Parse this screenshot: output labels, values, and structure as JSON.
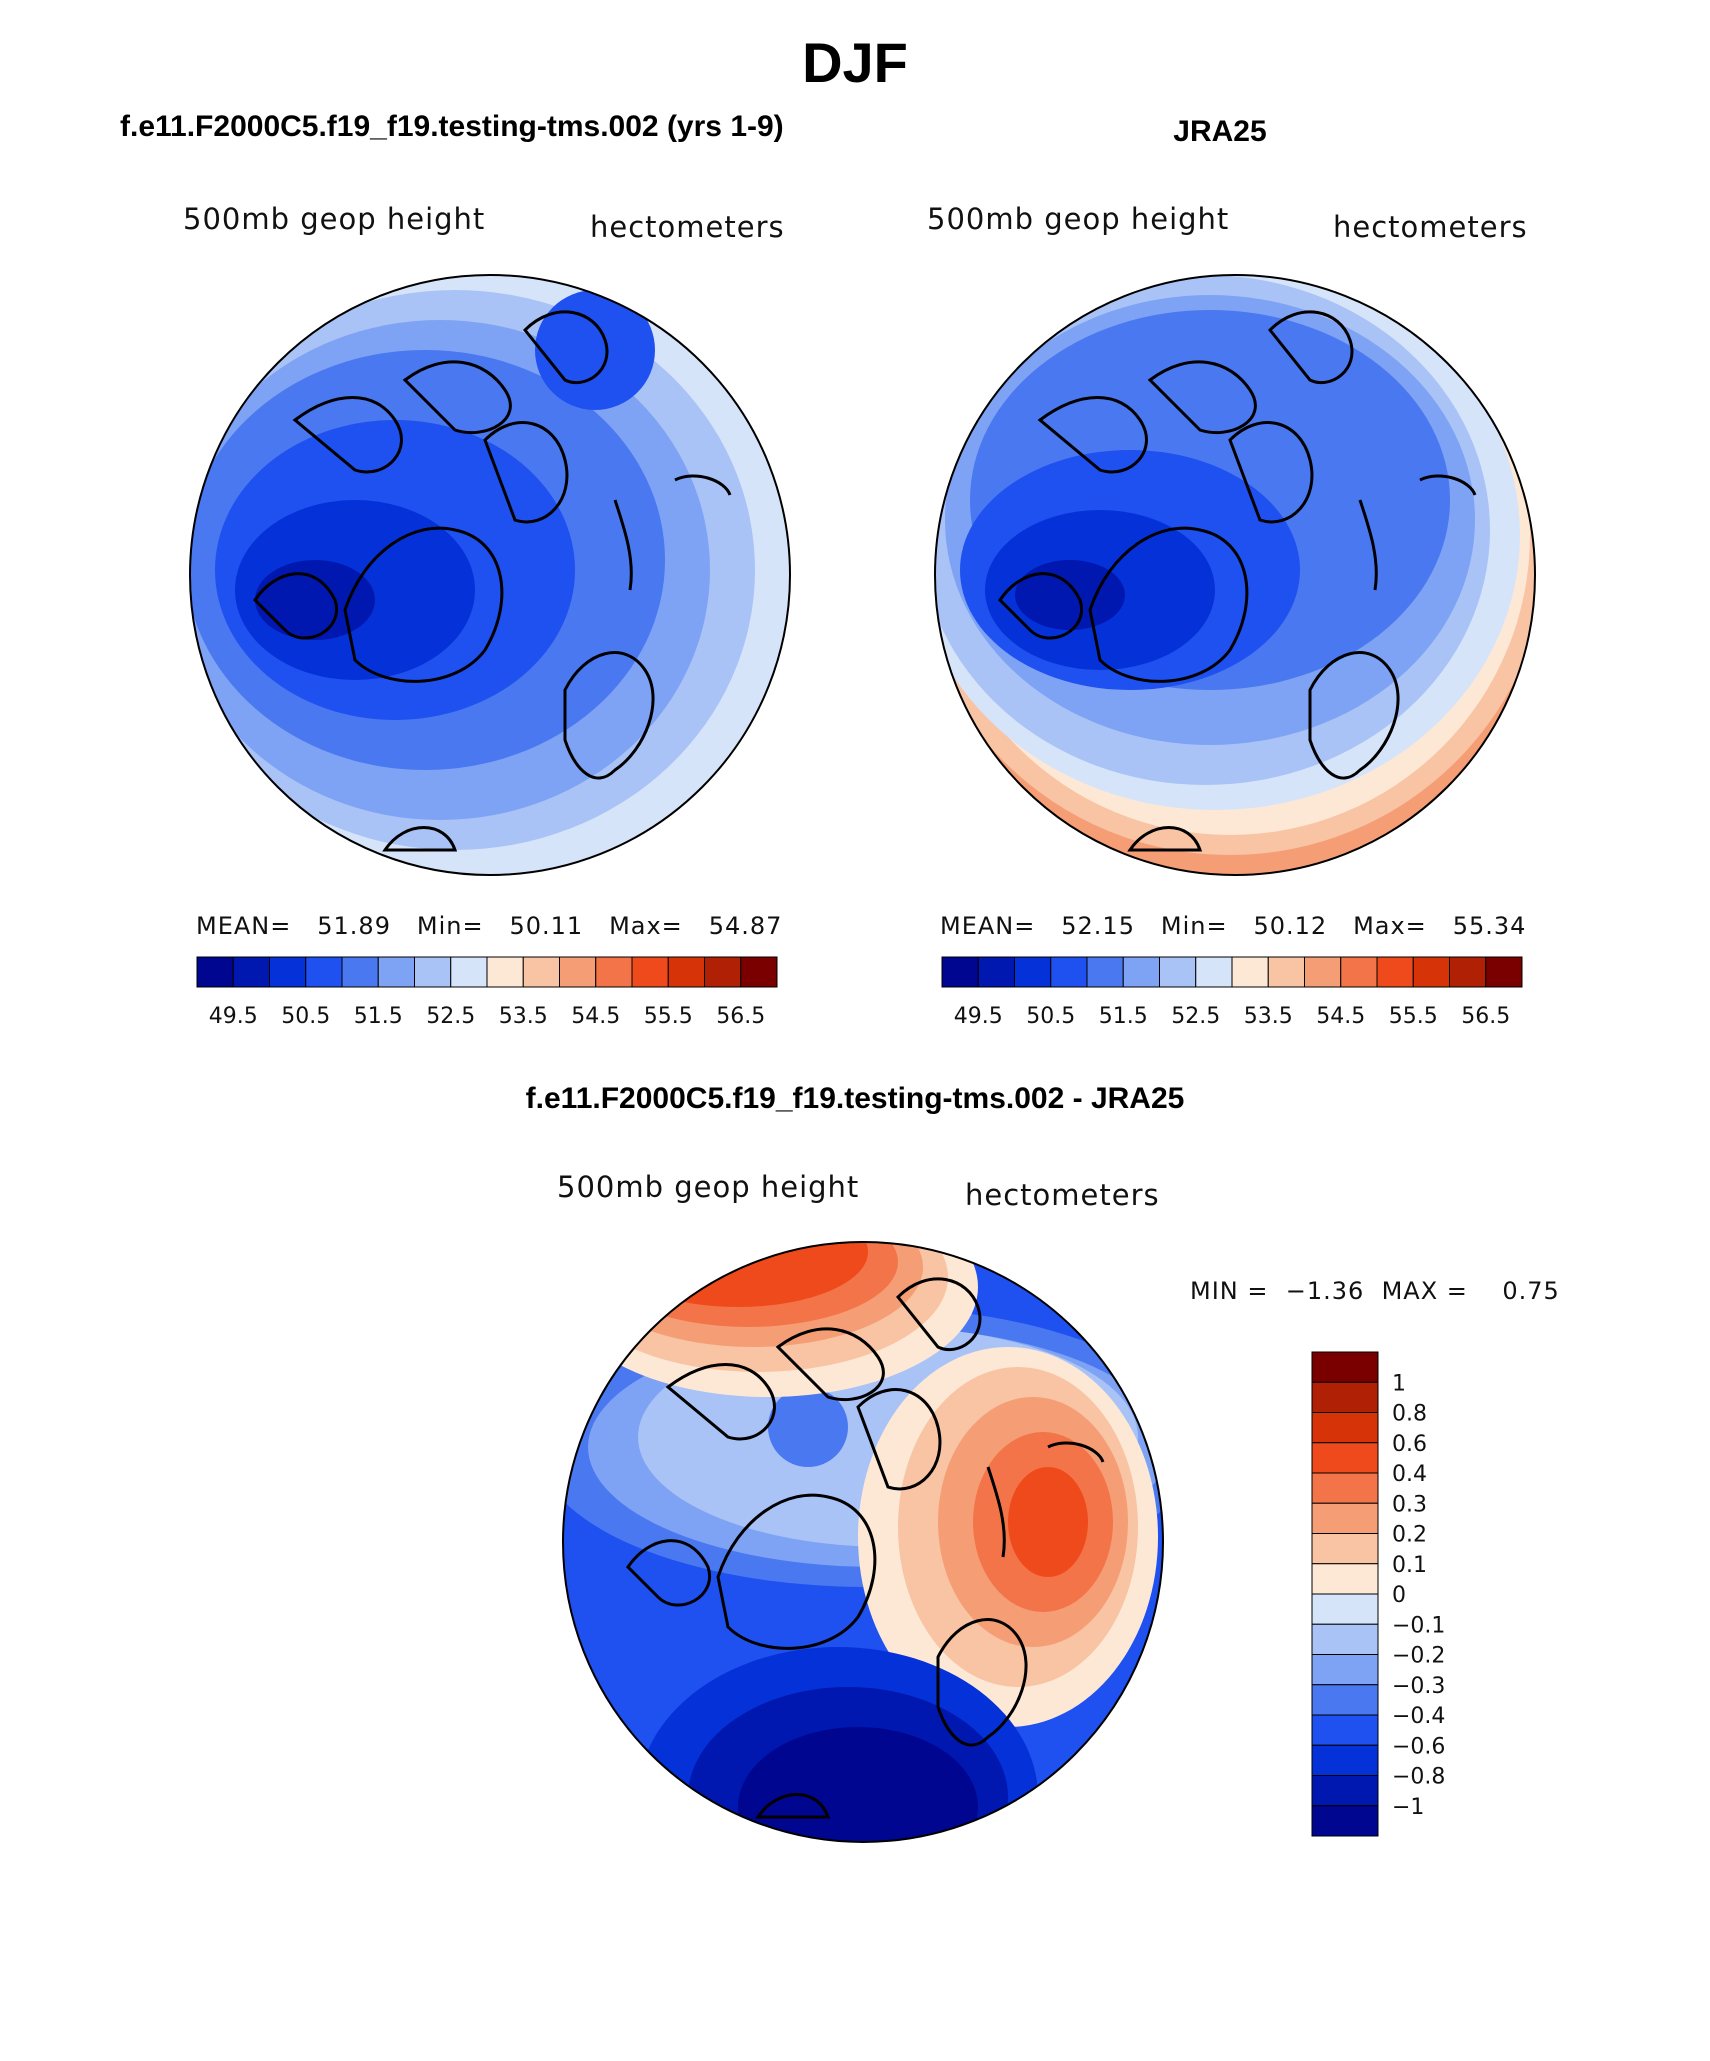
{
  "page_title": "DJF",
  "panels": [
    {
      "title": "f.e11.F2000C5.f19_f19.testing-tms.002 (yrs 1-9)",
      "variable": "500mb geop height",
      "units": "hectometers",
      "stats": {
        "mean_label": "MEAN=",
        "mean": "51.89",
        "min_label": "Min=",
        "min": "50.11",
        "max_label": "Max=",
        "max": "54.87"
      }
    },
    {
      "title": "JRA25",
      "variable": "500mb geop height",
      "units": "hectometers",
      "stats": {
        "mean_label": "MEAN=",
        "mean": "52.15",
        "min_label": "Min=",
        "min": "50.12",
        "max_label": "Max=",
        "max": "55.34"
      }
    }
  ],
  "diff_panel": {
    "title": "f.e11.F2000C5.f19_f19.testing-tms.002 - JRA25",
    "variable": "500mb geop height",
    "units": "hectometers",
    "min_label": "MIN =",
    "min": "−1.36",
    "max_label": "MAX =",
    "max": "0.75"
  },
  "colorbar_abs": {
    "labels": [
      "49.5",
      "50.5",
      "51.5",
      "52.5",
      "53.5",
      "54.5",
      "55.5",
      "56.5"
    ],
    "colors": [
      "#00068f",
      "#0018b0",
      "#0532d8",
      "#1f50f0",
      "#4a78f0",
      "#7ea2f4",
      "#a9c3f7",
      "#d6e4fa",
      "#fde8d6",
      "#f8c4a4",
      "#f59e76",
      "#f37448",
      "#ef4a1c",
      "#d63408",
      "#b02004",
      "#7a0000"
    ]
  },
  "colorbar_diff": {
    "labels": [
      "1",
      "0.8",
      "0.6",
      "0.4",
      "0.3",
      "0.2",
      "0.1",
      "0",
      "−0.1",
      "−0.2",
      "−0.3",
      "−0.4",
      "−0.6",
      "−0.8",
      "−1"
    ],
    "colors": [
      "#7a0000",
      "#b02004",
      "#d63408",
      "#ef4a1c",
      "#f37448",
      "#f59e76",
      "#f8c4a4",
      "#fde8d6",
      "#d6e4fa",
      "#a9c3f7",
      "#7ea2f4",
      "#4a78f0",
      "#1f50f0",
      "#0532d8",
      "#0018b0",
      "#00068f"
    ]
  }
}
